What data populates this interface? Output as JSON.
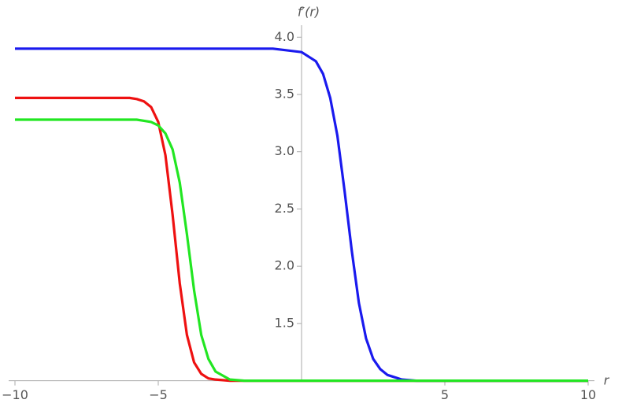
{
  "chart_data": {
    "type": "line",
    "xlabel": "r",
    "ylabel": "f′(r)",
    "x": [
      -10,
      -9,
      -8,
      -7,
      -6.5,
      -6,
      -5.75,
      -5.5,
      -5.25,
      -5,
      -4.75,
      -4.5,
      -4.25,
      -4,
      -3.75,
      -3.5,
      -3.25,
      -3,
      -2.5,
      -2,
      -1,
      0,
      0.5,
      0.75,
      1,
      1.25,
      1.5,
      1.75,
      2,
      2.25,
      2.5,
      2.75,
      3,
      3.5,
      4,
      5,
      6,
      7,
      8,
      9,
      10
    ],
    "series": [
      {
        "name": "blue",
        "color": "#1a1aee",
        "values": [
          3.9,
          3.9,
          3.9,
          3.9,
          3.9,
          3.9,
          3.9,
          3.9,
          3.9,
          3.9,
          3.9,
          3.9,
          3.9,
          3.9,
          3.9,
          3.9,
          3.9,
          3.9,
          3.9,
          3.9,
          3.9,
          3.87,
          3.79,
          3.68,
          3.47,
          3.14,
          2.66,
          2.14,
          1.68,
          1.37,
          1.19,
          1.1,
          1.05,
          1.01,
          1.0,
          1.0,
          1.0,
          1.0,
          1.0,
          1.0,
          1.0
        ]
      },
      {
        "name": "red",
        "color": "#ee1111",
        "values": [
          3.47,
          3.47,
          3.47,
          3.47,
          3.47,
          3.47,
          3.46,
          3.44,
          3.39,
          3.26,
          2.97,
          2.45,
          1.85,
          1.4,
          1.16,
          1.06,
          1.02,
          1.01,
          1.0,
          1.0,
          1.0,
          1.0,
          1.0,
          1.0,
          1.0,
          1.0,
          1.0,
          1.0,
          1.0,
          1.0,
          1.0,
          1.0,
          1.0,
          1.0,
          1.0,
          1.0,
          1.0,
          1.0,
          1.0,
          1.0,
          1.0
        ]
      },
      {
        "name": "green",
        "color": "#22e622",
        "values": [
          3.28,
          3.28,
          3.28,
          3.28,
          3.28,
          3.28,
          3.28,
          3.27,
          3.26,
          3.23,
          3.16,
          3.02,
          2.73,
          2.28,
          1.79,
          1.4,
          1.19,
          1.08,
          1.01,
          1.0,
          1.0,
          1.0,
          1.0,
          1.0,
          1.0,
          1.0,
          1.0,
          1.0,
          1.0,
          1.0,
          1.0,
          1.0,
          1.0,
          1.0,
          1.0,
          1.0,
          1.0,
          1.0,
          1.0,
          1.0,
          1.0
        ]
      }
    ],
    "xlim": [
      -10,
      10
    ],
    "xticks": [
      {
        "value": -10,
        "label": "−10"
      },
      {
        "value": -5,
        "label": "−5"
      },
      5,
      10
    ],
    "ylim": [
      1.0,
      4.05
    ],
    "yticks": [
      {
        "value": 1.5,
        "label": "1.5"
      },
      {
        "value": 2.0,
        "label": "2.0"
      },
      {
        "value": 2.5,
        "label": "2.5"
      },
      {
        "value": 3.0,
        "label": "3.0"
      },
      {
        "value": 3.5,
        "label": "3.5"
      },
      {
        "value": 4.0,
        "label": "4.0"
      }
    ]
  }
}
